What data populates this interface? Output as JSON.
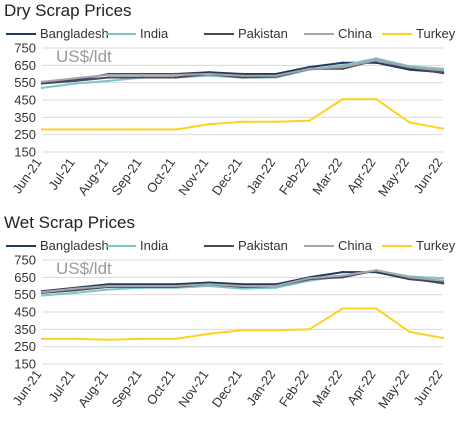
{
  "chart_data": [
    {
      "type": "line",
      "title": "Dry Scrap Prices",
      "unit_label": "US$/ldt",
      "ylim": [
        150,
        750
      ],
      "yticks": [
        150,
        250,
        350,
        450,
        550,
        650,
        750
      ],
      "grid": "horizontal",
      "legend_position": "top",
      "x": [
        "Jun-21",
        "Jul-21",
        "Aug-21",
        "Sep-21",
        "Oct-21",
        "Nov-21",
        "Dec-21",
        "Jan-22",
        "Feb-22",
        "Mar-22",
        "Apr-22",
        "May-22",
        "Jun-22"
      ],
      "series": [
        {
          "name": "Bangladesh",
          "color": "#1f3864",
          "values": [
            550,
            565,
            600,
            600,
            600,
            610,
            600,
            600,
            640,
            665,
            665,
            625,
            610
          ]
        },
        {
          "name": "India",
          "color": "#7ec4cc",
          "values": [
            520,
            545,
            560,
            580,
            580,
            590,
            580,
            580,
            625,
            650,
            690,
            645,
            630
          ]
        },
        {
          "name": "Pakistan",
          "color": "#4a4a5a",
          "values": [
            545,
            560,
            580,
            580,
            580,
            600,
            580,
            585,
            630,
            630,
            680,
            635,
            605
          ]
        },
        {
          "name": "China",
          "color": "#a6a6a6",
          "values": [
            555,
            575,
            595,
            595,
            595,
            600,
            590,
            590,
            630,
            640,
            680,
            640,
            620
          ]
        },
        {
          "name": "Turkey",
          "color": "#ffd21f",
          "values": [
            280,
            280,
            280,
            280,
            280,
            310,
            325,
            325,
            330,
            455,
            455,
            320,
            285
          ]
        }
      ]
    },
    {
      "type": "line",
      "title": "Wet Scrap Prices",
      "unit_label": "US$/ldt",
      "ylim": [
        150,
        750
      ],
      "yticks": [
        150,
        250,
        350,
        450,
        550,
        650,
        750
      ],
      "grid": "horizontal",
      "legend_position": "top",
      "x": [
        "Jun-21",
        "Jul-21",
        "Aug-21",
        "Sep-21",
        "Oct-21",
        "Nov-21",
        "Dec-21",
        "Jan-22",
        "Feb-22",
        "Mar-22",
        "Apr-22",
        "May-22",
        "Jun-22"
      ],
      "series": [
        {
          "name": "Bangladesh",
          "color": "#1f3864",
          "values": [
            570,
            590,
            610,
            610,
            610,
            620,
            610,
            610,
            650,
            680,
            680,
            640,
            620
          ]
        },
        {
          "name": "India",
          "color": "#7ec4cc",
          "values": [
            545,
            560,
            580,
            590,
            590,
            600,
            585,
            590,
            630,
            660,
            690,
            655,
            645
          ]
        },
        {
          "name": "Pakistan",
          "color": "#4a4a5a",
          "values": [
            560,
            575,
            595,
            595,
            595,
            610,
            595,
            600,
            640,
            650,
            690,
            645,
            615
          ]
        },
        {
          "name": "China",
          "color": "#a6a6a6",
          "values": [
            565,
            585,
            600,
            600,
            600,
            610,
            600,
            600,
            645,
            660,
            690,
            650,
            630
          ]
        },
        {
          "name": "Turkey",
          "color": "#ffd21f",
          "values": [
            295,
            295,
            290,
            295,
            295,
            325,
            345,
            345,
            350,
            470,
            470,
            335,
            300
          ]
        }
      ]
    }
  ]
}
